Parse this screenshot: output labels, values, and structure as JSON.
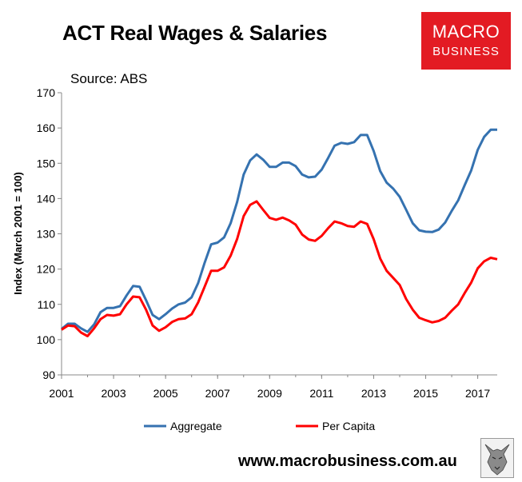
{
  "header": {
    "title": "ACT Real Wages & Salaries",
    "source": "Source: ABS",
    "logo_line1": "MACRO",
    "logo_line2": "BUSINESS"
  },
  "footer": {
    "url": "www.macrobusiness.com.au"
  },
  "colors": {
    "aggregate": "#3572b0",
    "per_capita": "#ff0000",
    "logo_bg": "#e31b23"
  },
  "chart_data": {
    "type": "line",
    "title": "ACT Real Wages & Salaries",
    "ylabel": "Index (March 2001 = 100)",
    "xlabel": "",
    "ylim": [
      90,
      170
    ],
    "xlim": [
      2001,
      2017.75
    ],
    "yticks": [
      90,
      100,
      110,
      120,
      130,
      140,
      150,
      160,
      170
    ],
    "xticks": [
      "2001",
      "2003",
      "2005",
      "2007",
      "2009",
      "2011",
      "2013",
      "2015",
      "2017"
    ],
    "grid": false,
    "legend_position": "bottom",
    "x": [
      2001.0,
      2001.25,
      2001.5,
      2001.75,
      2002.0,
      2002.25,
      2002.5,
      2002.75,
      2003.0,
      2003.25,
      2003.5,
      2003.75,
      2004.0,
      2004.25,
      2004.5,
      2004.75,
      2005.0,
      2005.25,
      2005.5,
      2005.75,
      2006.0,
      2006.25,
      2006.5,
      2006.75,
      2007.0,
      2007.25,
      2007.5,
      2007.75,
      2008.0,
      2008.25,
      2008.5,
      2008.75,
      2009.0,
      2009.25,
      2009.5,
      2009.75,
      2010.0,
      2010.25,
      2010.5,
      2010.75,
      2011.0,
      2011.25,
      2011.5,
      2011.75,
      2012.0,
      2012.25,
      2012.5,
      2012.75,
      2013.0,
      2013.25,
      2013.5,
      2013.75,
      2014.0,
      2014.25,
      2014.5,
      2014.75,
      2015.0,
      2015.25,
      2015.5,
      2015.75,
      2016.0,
      2016.25,
      2016.5,
      2016.75,
      2017.0,
      2017.25,
      2017.5,
      2017.75
    ],
    "series": [
      {
        "name": "Aggregate",
        "values": [
          103.0,
          104.5,
          104.5,
          103.2,
          102.2,
          104.3,
          107.8,
          109.0,
          109.0,
          109.5,
          112.5,
          115.2,
          115.0,
          111.2,
          107.0,
          105.8,
          107.2,
          108.8,
          110.0,
          110.5,
          112.0,
          116.0,
          121.8,
          127.0,
          127.5,
          129.0,
          133.0,
          139.0,
          146.8,
          150.8,
          152.5,
          151.0,
          149.0,
          149.0,
          150.2,
          150.2,
          149.2,
          146.8,
          146.0,
          146.2,
          148.2,
          151.5,
          155.0,
          155.8,
          155.5,
          156.0,
          158.0,
          158.0,
          153.5,
          147.8,
          144.5,
          142.8,
          140.5,
          136.8,
          133.0,
          131.0,
          130.6,
          130.5,
          131.2,
          133.2,
          136.5,
          139.5,
          143.8,
          148.0,
          153.8,
          157.5,
          159.5,
          159.5
        ]
      },
      {
        "name": "Per Capita",
        "values": [
          102.8,
          104.0,
          103.8,
          102.0,
          101.0,
          103.2,
          105.8,
          107.0,
          106.8,
          107.2,
          110.0,
          112.2,
          112.0,
          108.5,
          104.0,
          102.5,
          103.5,
          105.0,
          105.8,
          106.0,
          107.2,
          110.5,
          115.0,
          119.5,
          119.5,
          120.5,
          123.8,
          128.5,
          135.0,
          138.2,
          139.2,
          136.8,
          134.5,
          134.0,
          134.6,
          133.8,
          132.6,
          129.8,
          128.4,
          128.0,
          129.4,
          131.6,
          133.5,
          133.0,
          132.2,
          132.0,
          133.5,
          132.8,
          128.5,
          123.0,
          119.5,
          117.5,
          115.5,
          111.5,
          108.5,
          106.2,
          105.5,
          104.9,
          105.3,
          106.2,
          108.2,
          110.0,
          113.2,
          116.2,
          120.2,
          122.2,
          123.2,
          122.8
        ]
      }
    ]
  }
}
